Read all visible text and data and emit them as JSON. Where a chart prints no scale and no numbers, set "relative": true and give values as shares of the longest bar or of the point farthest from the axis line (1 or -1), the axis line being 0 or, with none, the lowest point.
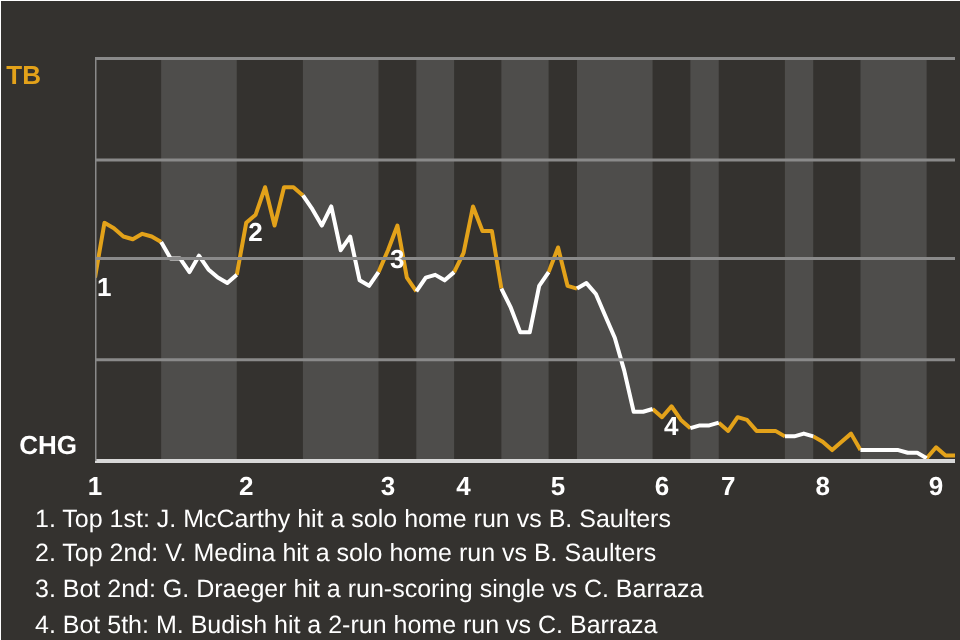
{
  "chart_data": {
    "type": "line",
    "relative": true,
    "ref_lines": [
      {
        "axis": "y",
        "value": 0.37,
        "color": "#8a8a8a"
      },
      {
        "axis": "y",
        "value": 0.74,
        "color": "#8a8a8a"
      },
      {
        "axis": "y",
        "value": 1.1,
        "color": "#8a8a8a"
      },
      {
        "axis": "y",
        "value": 1.47,
        "color": "#8a8a8a"
      }
    ],
    "categories": [
      "1",
      null,
      null,
      null,
      null,
      null,
      null,
      null,
      null,
      null,
      null,
      null,
      null,
      null,
      null,
      null,
      "2",
      null,
      null,
      null,
      null,
      null,
      null,
      null,
      null,
      null,
      null,
      null,
      null,
      null,
      null,
      "3",
      null,
      null,
      null,
      null,
      null,
      null,
      null,
      "4",
      null,
      null,
      null,
      null,
      null,
      null,
      null,
      null,
      null,
      "5",
      null,
      null,
      null,
      null,
      null,
      null,
      null,
      null,
      null,
      null,
      "6",
      null,
      null,
      null,
      null,
      null,
      null,
      "7",
      null,
      null,
      null,
      null,
      null,
      null,
      null,
      null,
      null,
      "8",
      null,
      null,
      null,
      null,
      null,
      null,
      null,
      null,
      null,
      null,
      null,
      "9",
      null,
      null
    ],
    "series": [
      {
        "name": "TB",
        "color": "#e3a21a",
        "values": [
          0.67,
          0.87,
          0.85,
          0.82,
          0.81,
          0.83,
          0.82,
          0.8,
          null,
          null,
          null,
          null,
          null,
          null,
          null,
          0.68,
          0.87,
          0.9,
          1.0,
          0.86,
          1.0,
          1.0,
          0.97,
          null,
          null,
          null,
          null,
          null,
          null,
          null,
          0.69,
          0.77,
          0.86,
          0.67,
          0.62,
          null,
          null,
          null,
          0.69,
          0.76,
          0.93,
          0.84,
          0.84,
          0.63,
          null,
          null,
          null,
          null,
          0.69,
          0.78,
          0.64,
          0.63,
          null,
          null,
          null,
          null,
          null,
          null,
          null,
          0.19,
          0.16,
          0.2,
          0.15,
          0.12,
          null,
          null,
          0.14,
          0.11,
          0.16,
          0.15,
          0.11,
          0.11,
          0.11,
          0.09,
          null,
          null,
          0.09,
          0.07,
          0.04,
          0.07,
          0.1,
          0.04,
          null,
          null,
          null,
          null,
          null,
          null,
          0.01,
          0.05,
          0.02,
          0.02
        ]
      },
      {
        "name": "CHG",
        "color": "#ffffff",
        "values": [
          null,
          null,
          null,
          null,
          null,
          null,
          null,
          0.8,
          0.74,
          0.74,
          0.69,
          0.75,
          0.7,
          0.67,
          0.65,
          0.68,
          null,
          null,
          null,
          null,
          null,
          null,
          0.97,
          0.92,
          0.86,
          0.93,
          0.77,
          0.82,
          0.66,
          0.64,
          0.69,
          null,
          null,
          null,
          0.62,
          0.67,
          0.68,
          0.66,
          0.69,
          null,
          null,
          null,
          null,
          0.63,
          0.56,
          0.47,
          0.47,
          0.64,
          0.69,
          null,
          null,
          0.63,
          0.65,
          0.61,
          0.53,
          0.45,
          0.33,
          0.18,
          0.18,
          0.19,
          null,
          null,
          null,
          0.12,
          0.13,
          0.13,
          0.14,
          null,
          null,
          null,
          null,
          null,
          null,
          0.09,
          0.09,
          0.1,
          0.09,
          null,
          null,
          null,
          null,
          0.04,
          0.04,
          0.04,
          0.04,
          0.04,
          0.03,
          0.03,
          0.01,
          null,
          null,
          null
        ]
      }
    ],
    "annotations": [
      {
        "text": "1",
        "x": "1",
        "y": 0.67
      },
      {
        "text": "2",
        "x": "2",
        "y": 0.87
      },
      {
        "text": "3",
        "x": "3",
        "y": 0.77
      },
      {
        "text": "4",
        "x": "6",
        "y": 0.16
      },
      "1. Top 1st: J. McCarthy hit a solo home run vs B. Saulters",
      "2. Top 2nd: V. Medina hit a solo home run vs B. Saulters",
      "3. Bot 2nd: G. Draeger hit a run-scoring single vs C. Barraza",
      "4. Bot 5th: M. Budish hit a 2-run home run vs C. Barraza"
    ]
  }
}
